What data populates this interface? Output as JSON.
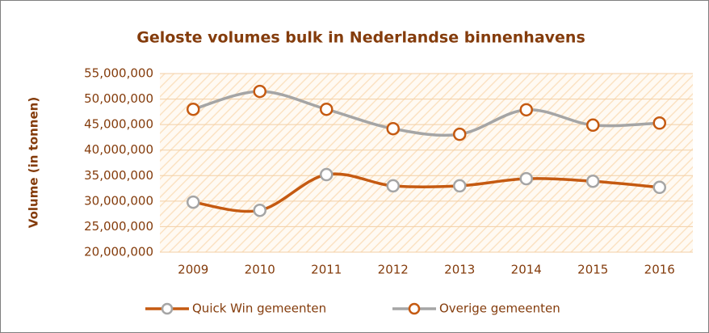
{
  "chart_data": {
    "type": "line",
    "title": "Geloste volumes bulk in Nederlandse binnenhavens",
    "y_label": "Volume (in tonnen)",
    "categories": [
      "2009",
      "2010",
      "2011",
      "2012",
      "2013",
      "2014",
      "2015",
      "2016"
    ],
    "series": [
      {
        "name": "Quick Win gemeenten",
        "color": "#c55a11",
        "marker_edge": "#a5a5a5",
        "marker_fill": "#ffffff",
        "values": [
          29800000,
          28200000,
          35200000,
          33000000,
          33000000,
          34400000,
          33900000,
          32700000
        ]
      },
      {
        "name": "Overige gemeenten",
        "color": "#a5a5a5",
        "marker_edge": "#c55a11",
        "marker_fill": "#ffffff",
        "values": [
          48000000,
          51500000,
          48000000,
          44200000,
          43100000,
          47900000,
          44900000,
          45300000
        ]
      }
    ],
    "ylim": [
      20000000,
      55000000
    ],
    "yticks": [
      {
        "value": 20000000,
        "label": "20,000,000"
      },
      {
        "value": 25000000,
        "label": "25,000,000"
      },
      {
        "value": 30000000,
        "label": "30,000,000"
      },
      {
        "value": 35000000,
        "label": "35,000,000"
      },
      {
        "value": 40000000,
        "label": "40,000,000"
      },
      {
        "value": 45000000,
        "label": "45,000,000"
      },
      {
        "value": 50000000,
        "label": "50,000,000"
      },
      {
        "value": 55000000,
        "label": "55,000,000"
      }
    ],
    "grid": true,
    "legend": "bottom",
    "smooth": true
  }
}
